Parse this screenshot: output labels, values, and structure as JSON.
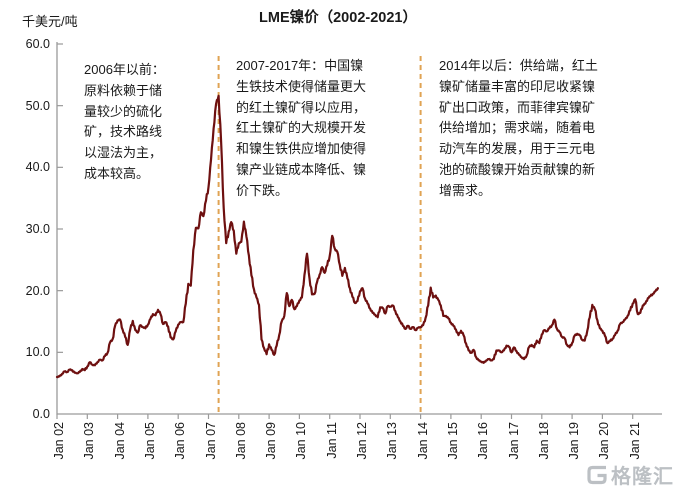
{
  "header": {
    "title": "LME镍价（2002-2021）",
    "y_axis_unit": "千美元/吨"
  },
  "annotations": [
    {
      "id": "before-2006",
      "text": "2006年以前：\n原料依赖于储\n量较少的硫化\n矿，技术路线\n以湿法为主，\n成本较高。"
    },
    {
      "id": "2007-2017",
      "text": "2007-2017年：中国镍\n生铁技术使得储量更大\n的红土镍矿得以应用，\n红土镍矿的大规模开发\n和镍生铁供应增加使得\n镍产业链成本降低、镍\n价下跌。"
    },
    {
      "id": "after-2014",
      "text": "2014年以后：供给端，红土\n镍矿储量丰富的印尼收紧镍\n矿出口政策，而菲律宾镍矿\n供给增加；需求端，随着电\n动汽车的发展，用于三元电\n池的硫酸镍开始贡献镍的新\n增需求。"
    }
  ],
  "watermark": {
    "text": "格隆汇"
  },
  "colors": {
    "line": "#6E1010",
    "event_line": "#E0A353",
    "axis": "#9a9a9a",
    "text": "#1a1a1a",
    "watermark": "#b3b8bd"
  },
  "chart_data": {
    "type": "line",
    "title": "LME镍价（2002-2021）",
    "xlabel": "",
    "ylabel": "千美元/吨",
    "ylim": [
      0,
      60
    ],
    "y_tick_labels": [
      "0.0",
      "10.0",
      "20.0",
      "30.0",
      "40.0",
      "50.0",
      "60.0"
    ],
    "x_tick_labels": [
      "Jan 02",
      "Jan 03",
      "Jan 04",
      "Jan 05",
      "Jan 06",
      "Jan 07",
      "Jan 08",
      "Jan 09",
      "Jan 10",
      "Jan 11",
      "Jan 12",
      "Jan 13",
      "Jan 14",
      "Jan 15",
      "Jan 16",
      "Jan 17",
      "Jan 18",
      "Jan 19",
      "Jan 20",
      "Jan 21"
    ],
    "grid": false,
    "legend": "none",
    "frequency": "monthly",
    "start_date": "2002-01",
    "event_lines": [
      {
        "date": "2007-05",
        "style": "dashed"
      },
      {
        "date": "2014-01",
        "style": "dashed"
      }
    ],
    "series": [
      {
        "name": "LME镍价(千美元/吨)",
        "values": [
          6.0,
          6.1,
          6.5,
          6.9,
          6.8,
          7.2,
          7.1,
          6.7,
          6.6,
          6.8,
          7.3,
          7.1,
          7.7,
          8.4,
          8.0,
          7.9,
          8.4,
          8.8,
          8.7,
          9.4,
          9.9,
          11.6,
          12.1,
          14.3,
          15.2,
          15.3,
          13.7,
          12.5,
          11.2,
          13.7,
          15.1,
          13.6,
          13.2,
          14.4,
          14.1,
          13.9,
          14.5,
          15.4,
          16.2,
          16.0,
          16.9,
          16.2,
          14.6,
          14.9,
          14.2,
          12.4,
          12.1,
          13.4,
          14.5,
          14.9,
          14.9,
          17.9,
          21.1,
          20.8,
          26.6,
          30.2,
          30.1,
          32.7,
          32.1,
          34.6,
          36.8,
          41.2,
          46.3,
          50.3,
          51.6,
          44.2,
          33.4,
          27.7,
          29.6,
          31.1,
          29.7,
          26.0,
          27.7,
          27.9,
          31.2,
          28.8,
          25.7,
          22.5,
          20.2,
          18.9,
          17.7,
          12.1,
          10.7,
          9.7,
          11.3,
          10.4,
          9.6,
          11.1,
          12.8,
          15.0,
          15.9,
          19.6,
          17.5,
          18.5,
          17.0,
          17.5,
          18.4,
          18.9,
          22.5,
          26.0,
          22.0,
          19.4,
          19.5,
          21.4,
          22.6,
          23.8,
          22.9,
          24.1,
          25.6,
          28.9,
          26.8,
          26.3,
          24.2,
          22.4,
          23.7,
          22.0,
          20.4,
          19.0,
          18.0,
          18.3,
          19.9,
          20.4,
          18.7,
          17.9,
          17.1,
          16.4,
          16.1,
          15.7,
          17.3,
          17.2,
          16.3,
          17.5,
          17.4,
          17.6,
          16.7,
          15.7,
          15.0,
          14.3,
          13.8,
          14.3,
          13.8,
          14.1,
          13.6,
          14.0,
          14.1,
          14.4,
          15.6,
          17.6,
          20.5,
          18.9,
          19.2,
          18.5,
          17.6,
          15.9,
          15.9,
          15.5,
          14.8,
          14.3,
          13.7,
          12.8,
          13.5,
          12.8,
          11.4,
          10.3,
          9.9,
          10.4,
          9.2,
          8.7,
          8.5,
          8.3,
          8.7,
          8.9,
          8.7,
          8.9,
          10.3,
          10.3,
          10.0,
          10.3,
          11.1,
          10.9,
          10.0,
          10.8,
          10.2,
          9.6,
          9.2,
          8.9,
          9.5,
          10.9,
          11.2,
          10.8,
          11.9,
          11.5,
          12.9,
          13.6,
          13.4,
          13.9,
          14.4,
          15.3,
          13.8,
          13.3,
          12.5,
          12.3,
          11.2,
          10.8,
          11.5,
          12.7,
          13.0,
          12.8,
          12.0,
          11.9,
          13.5,
          15.7,
          17.7,
          17.0,
          15.2,
          13.9,
          13.5,
          12.7,
          11.5,
          11.8,
          12.2,
          12.8,
          13.5,
          14.6,
          14.9,
          15.3,
          15.9,
          16.8,
          17.9,
          18.6,
          16.2,
          16.4,
          17.6,
          17.9,
          18.8,
          19.1,
          19.5,
          19.9,
          20.4
        ]
      }
    ]
  }
}
